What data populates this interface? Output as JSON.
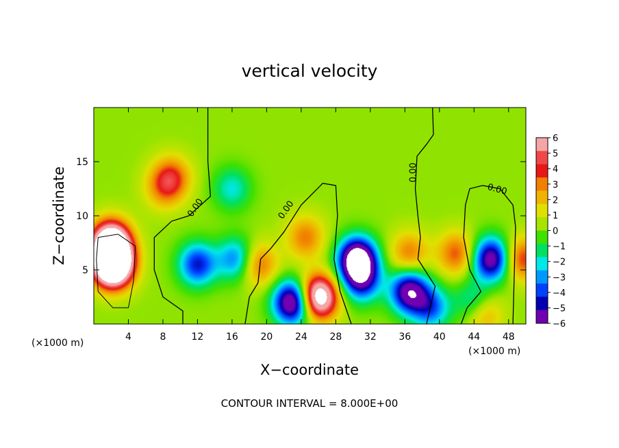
{
  "chart_data": {
    "type": "heatmap",
    "title": "vertical velocity",
    "xlabel": "X−coordinate",
    "ylabel": "Z−coordinate",
    "x_unit_left": "(×1000 m)",
    "x_unit_right": "(×1000 m)",
    "xlim": [
      0,
      50
    ],
    "ylim": [
      0,
      20
    ],
    "x_ticks": [
      4,
      8,
      12,
      16,
      20,
      24,
      28,
      32,
      36,
      40,
      44,
      48
    ],
    "x_tick_labels": [
      "4",
      "8",
      "12",
      "16",
      "20",
      "24",
      "28",
      "32",
      "36",
      "40",
      "44",
      "48"
    ],
    "y_ticks": [
      5,
      10,
      15
    ],
    "y_tick_labels": [
      "5",
      "10",
      "15"
    ],
    "footer": "CONTOUR INTERVAL = 8.000E+00",
    "contour_label": "0.00",
    "colorbar": {
      "ticks": [
        6,
        5,
        4,
        3,
        2,
        1,
        0,
        -1,
        -2,
        -3,
        -4,
        -5,
        -6
      ],
      "tick_labels": [
        "6",
        "5",
        "4",
        "3",
        "2",
        "1",
        "0",
        "−1",
        "−2",
        "−3",
        "−4",
        "−5",
        "−6"
      ],
      "colors": [
        "#f4a6a6",
        "#f04848",
        "#e81818",
        "#f08000",
        "#f0b400",
        "#e0e000",
        "#a8e400",
        "#40e000",
        "#00e060",
        "#00e8e8",
        "#0098ff",
        "#0040ff",
        "#0000b0",
        "#7000b0"
      ],
      "vmin": -6,
      "vmax": 6
    },
    "features": [
      {
        "x": 2.2,
        "z": 5.5,
        "w": 14
      },
      {
        "x": 2.0,
        "z": 7.5,
        "w": 10
      },
      {
        "x": 9.0,
        "z": 13.5,
        "w": 3.5
      },
      {
        "x": 8.0,
        "z": 12.5,
        "w": 2.0
      },
      {
        "x": 12.0,
        "z": 5.5,
        "w": -5
      },
      {
        "x": 16.0,
        "z": 12.5,
        "w": -2.5
      },
      {
        "x": 16.5,
        "z": 6.0,
        "w": -4
      },
      {
        "x": 19.0,
        "z": 5.5,
        "w": 3.5
      },
      {
        "x": 23.0,
        "z": 2.0,
        "w": -8
      },
      {
        "x": 24.5,
        "z": 8.0,
        "w": 3
      },
      {
        "x": 26.0,
        "z": 2.5,
        "w": 9
      },
      {
        "x": 30.5,
        "z": 6.0,
        "w": -9
      },
      {
        "x": 31.0,
        "z": 4.0,
        "w": -5
      },
      {
        "x": 36.5,
        "z": 3.0,
        "w": -7
      },
      {
        "x": 36.5,
        "z": 6.5,
        "w": 3
      },
      {
        "x": 39.0,
        "z": 1.5,
        "w": -4
      },
      {
        "x": 42.0,
        "z": 6.5,
        "w": 3.5
      },
      {
        "x": 44.0,
        "z": 2.0,
        "w": -3
      },
      {
        "x": 45.0,
        "z": 1.0,
        "w": 3
      },
      {
        "x": 46.0,
        "z": 6.0,
        "w": -7
      },
      {
        "x": 49.5,
        "z": 6.0,
        "w": 4
      }
    ]
  }
}
